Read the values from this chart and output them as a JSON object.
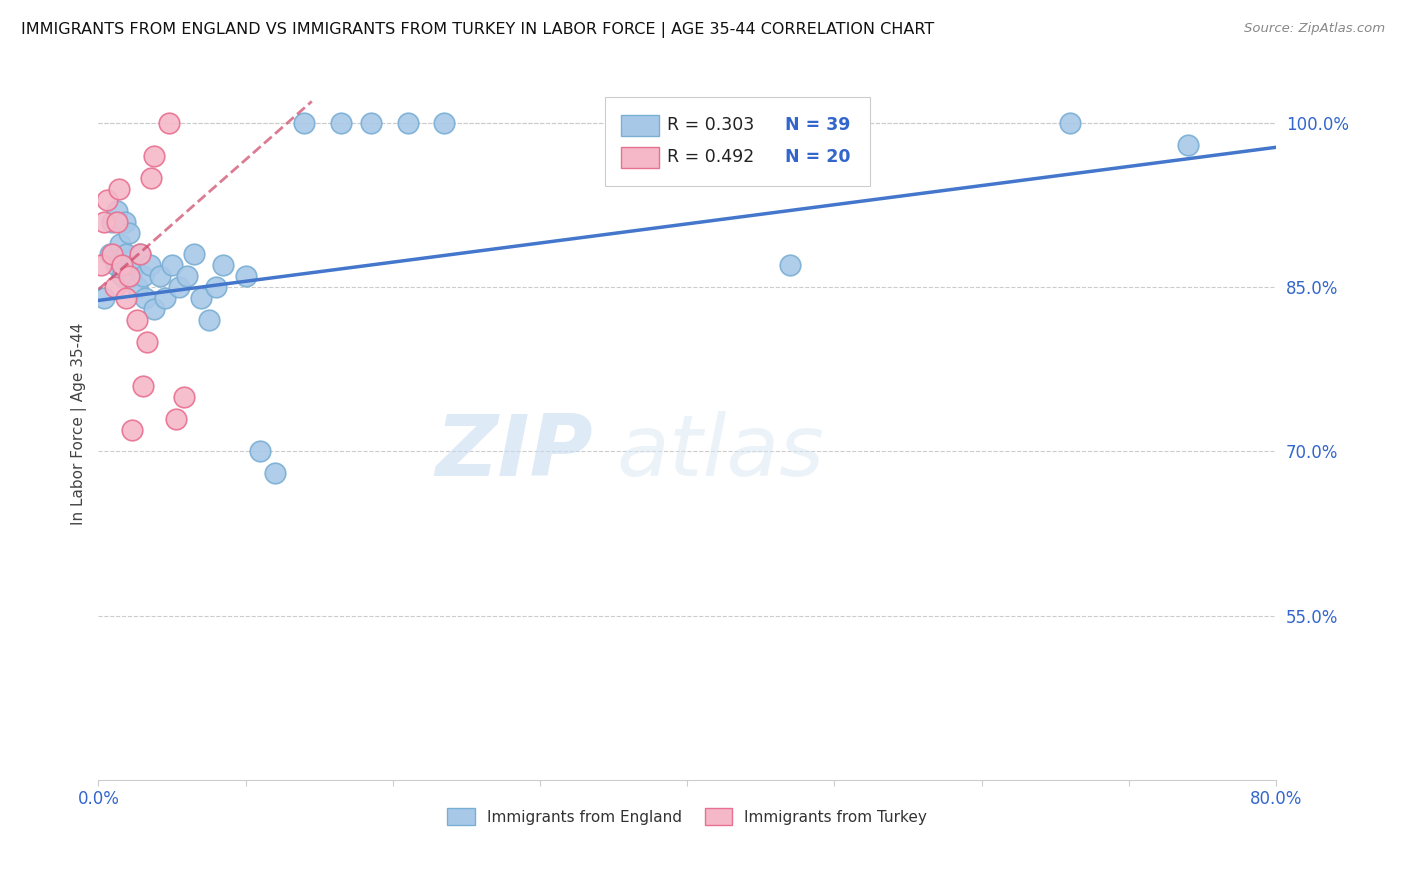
{
  "title": "IMMIGRANTS FROM ENGLAND VS IMMIGRANTS FROM TURKEY IN LABOR FORCE | AGE 35-44 CORRELATION CHART",
  "source": "Source: ZipAtlas.com",
  "ylabel": "In Labor Force | Age 35-44",
  "xlim": [
    0.0,
    0.8
  ],
  "ylim": [
    0.4,
    1.05
  ],
  "x_ticks": [
    0.0,
    0.1,
    0.2,
    0.3,
    0.4,
    0.5,
    0.6,
    0.7,
    0.8
  ],
  "x_tick_labels": [
    "0.0%",
    "",
    "",
    "",
    "",
    "",
    "",
    "",
    "80.0%"
  ],
  "y_ticks": [
    0.55,
    0.7,
    0.85,
    1.0
  ],
  "y_tick_labels": [
    "55.0%",
    "70.0%",
    "85.0%",
    "100.0%"
  ],
  "grid_color": "#cccccc",
  "background_color": "#ffffff",
  "england_color": "#a8c8e8",
  "turkey_color": "#f5b8c8",
  "england_edge_color": "#7aafd4",
  "turkey_edge_color": "#e87090",
  "england_line_color": "#4477cc",
  "turkey_line_color": "#cc4466",
  "legend_R_color": "#222222",
  "legend_N_color": "#3366cc",
  "legend_R_england": "R = 0.303",
  "legend_N_england": "N = 39",
  "legend_R_turkey": "R = 0.492",
  "legend_N_turkey": "N = 20",
  "watermark_zip": "ZIP",
  "watermark_atlas": "atlas",
  "england_scatter_x": [
    0.004,
    0.008,
    0.009,
    0.012,
    0.013,
    0.015,
    0.016,
    0.018,
    0.019,
    0.021,
    0.022,
    0.024,
    0.026,
    0.028,
    0.03,
    0.032,
    0.035,
    0.038,
    0.042,
    0.045,
    0.05,
    0.055,
    0.06,
    0.065,
    0.07,
    0.075,
    0.08,
    0.085,
    0.1,
    0.11,
    0.12,
    0.14,
    0.165,
    0.185,
    0.21,
    0.235,
    0.47,
    0.66,
    0.74
  ],
  "england_scatter_y": [
    0.84,
    0.88,
    0.91,
    0.87,
    0.92,
    0.89,
    0.86,
    0.91,
    0.88,
    0.9,
    0.86,
    0.87,
    0.85,
    0.88,
    0.86,
    0.84,
    0.87,
    0.83,
    0.86,
    0.84,
    0.87,
    0.85,
    0.86,
    0.88,
    0.84,
    0.82,
    0.85,
    0.87,
    0.86,
    0.7,
    0.68,
    1.0,
    1.0,
    1.0,
    1.0,
    1.0,
    0.87,
    1.0,
    0.98
  ],
  "turkey_scatter_x": [
    0.002,
    0.004,
    0.006,
    0.009,
    0.011,
    0.013,
    0.014,
    0.016,
    0.019,
    0.021,
    0.023,
    0.026,
    0.028,
    0.03,
    0.033,
    0.036,
    0.038,
    0.048,
    0.053,
    0.058
  ],
  "turkey_scatter_y": [
    0.87,
    0.91,
    0.93,
    0.88,
    0.85,
    0.91,
    0.94,
    0.87,
    0.84,
    0.86,
    0.72,
    0.82,
    0.88,
    0.76,
    0.8,
    0.95,
    0.97,
    1.0,
    0.73,
    0.75
  ],
  "england_trendline_x": [
    0.0,
    0.8
  ],
  "england_trendline_y": [
    0.838,
    0.978
  ],
  "turkey_trendline_x": [
    0.0,
    0.145
  ],
  "turkey_trendline_y": [
    0.848,
    1.02
  ]
}
